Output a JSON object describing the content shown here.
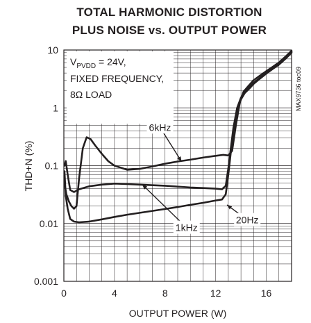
{
  "chart_data": {
    "type": "line",
    "title": "TOTAL HARMONIC DISTORTION",
    "subtitle": "PLUS NOISE vs. OUTPUT POWER",
    "xlabel": "OUTPUT POWER (W)",
    "ylabel": "THD+N (%)",
    "xlim": [
      0,
      18
    ],
    "ylim": [
      0.001,
      10
    ],
    "yscale": "log",
    "grid": true,
    "x_ticks": [
      "0",
      "4",
      "8",
      "12",
      "16"
    ],
    "y_ticks": [
      "0.001",
      "0.01",
      "0.1",
      "1",
      "10"
    ],
    "conditions": {
      "supply_pre": "V",
      "supply_sub": "PVDD",
      "supply_post": " = 24V,",
      "line2": "FIXED FREQUENCY,",
      "line3": "8Ω LOAD"
    },
    "part_code": "MAX9736 toc09",
    "series": [
      {
        "name": "6kHz",
        "x": [
          0.05,
          0.2,
          0.4,
          0.6,
          0.8,
          1.0,
          1.2,
          1.5,
          1.8,
          2.1,
          2.5,
          3.0,
          3.5,
          4.0,
          5.0,
          6.0,
          7.0,
          8.0,
          9.0,
          10.0,
          11.0,
          12.0,
          12.6,
          13.0,
          13.3,
          13.6,
          13.9,
          14.2,
          14.6,
          15.0,
          15.5,
          16.0,
          16.5,
          17.0,
          17.5,
          18.0
        ],
        "y": [
          0.05,
          0.032,
          0.024,
          0.02,
          0.018,
          0.02,
          0.06,
          0.2,
          0.31,
          0.29,
          0.22,
          0.16,
          0.12,
          0.1,
          0.085,
          0.088,
          0.097,
          0.108,
          0.118,
          0.127,
          0.138,
          0.148,
          0.154,
          0.15,
          0.18,
          0.5,
          1.2,
          1.9,
          2.4,
          3.0,
          3.6,
          4.3,
          5.1,
          6.1,
          7.6,
          9.7
        ]
      },
      {
        "name": "1kHz",
        "x": [
          0.05,
          0.15,
          0.3,
          0.5,
          0.8,
          1.2,
          2.0,
          3.0,
          4.0,
          5.0,
          6.0,
          8.0,
          10.0,
          11.0,
          12.0,
          12.5,
          12.8,
          13.0,
          13.2,
          13.4,
          13.7,
          14.0,
          14.3,
          14.7,
          15.0,
          15.5,
          16.0,
          16.5,
          17.0,
          17.5,
          18.0
        ],
        "y": [
          0.1,
          0.12,
          0.07,
          0.038,
          0.035,
          0.039,
          0.044,
          0.047,
          0.049,
          0.048,
          0.047,
          0.045,
          0.042,
          0.041,
          0.04,
          0.039,
          0.045,
          0.09,
          0.2,
          0.45,
          1.0,
          1.5,
          1.9,
          2.3,
          2.7,
          3.3,
          4.0,
          4.8,
          5.8,
          7.2,
          9.3
        ]
      },
      {
        "name": "20Hz",
        "x": [
          0.05,
          0.15,
          0.3,
          0.5,
          0.8,
          1.2,
          2.0,
          3.0,
          4.0,
          5.0,
          6.0,
          7.0,
          8.0,
          9.0,
          10.0,
          11.0,
          12.0,
          12.5,
          12.8,
          13.0,
          13.2,
          13.4,
          13.7,
          14.0,
          14.3,
          14.7,
          15.0,
          15.5,
          16.0,
          16.5,
          17.0,
          17.5,
          18.0
        ],
        "y": [
          0.08,
          0.03,
          0.018,
          0.012,
          0.0108,
          0.0105,
          0.0108,
          0.0118,
          0.013,
          0.0142,
          0.0153,
          0.0165,
          0.0178,
          0.0193,
          0.021,
          0.0228,
          0.025,
          0.026,
          0.032,
          0.07,
          0.17,
          0.4,
          0.9,
          1.4,
          1.8,
          2.2,
          2.6,
          3.2,
          3.9,
          4.7,
          5.6,
          7.0,
          9.0
        ]
      }
    ],
    "annotations": [
      {
        "text": "6kHz",
        "x": 7.6,
        "y": 0.46,
        "to_x": 9.3,
        "to_y": 0.118
      },
      {
        "text": "1kHz",
        "x": 9.7,
        "y": 0.0085,
        "to_x": 6.2,
        "to_y": 0.047
      },
      {
        "text": "20Hz",
        "x": 14.5,
        "y": 0.0115,
        "to_x": 12.9,
        "to_y": 0.021
      }
    ]
  }
}
